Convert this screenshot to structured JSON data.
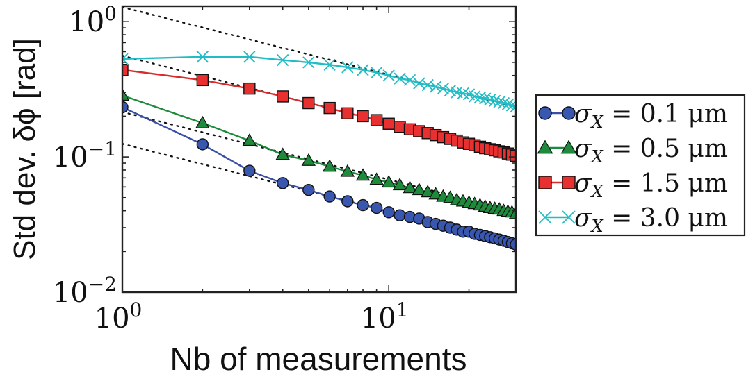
{
  "chart_data": {
    "type": "line",
    "title": "",
    "xlabel": "Nb of measurements",
    "ylabel": "Std dev. δϕ [rad]",
    "xscale": "log",
    "yscale": "log",
    "xlim": [
      1,
      30
    ],
    "ylim": [
      0.01,
      1.3
    ],
    "grid": false,
    "legend_position": "outside-right",
    "x_ticks": [
      {
        "value": 1,
        "base": "10",
        "exp": "0"
      },
      {
        "value": 10,
        "base": "10",
        "exp": "1"
      }
    ],
    "y_ticks": [
      {
        "value": 1,
        "base": "10",
        "exp": "0"
      },
      {
        "value": 0.1,
        "base": "10",
        "exp": "−1"
      },
      {
        "value": 0.01,
        "base": "10",
        "exp": "−2"
      }
    ],
    "series": [
      {
        "name": "σX = 0.1 μm",
        "legend_label": {
          "sigma": "σ",
          "sub": "X",
          "rest": " = 0.1 μm"
        },
        "color": "#3a4fa3",
        "marker": "circle",
        "marker_fill": "#3a57b0",
        "fit_amplitude": 0.125,
        "x": [
          1,
          2,
          3,
          4,
          5,
          6,
          7,
          8,
          9,
          10,
          11,
          12,
          13,
          14,
          15,
          16,
          17,
          18,
          19,
          20,
          21,
          22,
          23,
          24,
          25,
          26,
          27,
          28,
          29,
          30
        ],
        "y": [
          0.233,
          0.124,
          0.079,
          0.064,
          0.057,
          0.051,
          0.047,
          0.044,
          0.042,
          0.039,
          0.037,
          0.036,
          0.035,
          0.033,
          0.032,
          0.031,
          0.03,
          0.029,
          0.028,
          0.028,
          0.027,
          0.0265,
          0.026,
          0.0255,
          0.025,
          0.0245,
          0.024,
          0.0235,
          0.023,
          0.0225
        ]
      },
      {
        "name": "σX = 0.5 μm",
        "legend_label": {
          "sigma": "σ",
          "sub": "X",
          "rest": " = 0.5 μm"
        },
        "color": "#1e8a3c",
        "marker": "triangle",
        "marker_fill": "#1e8a3c",
        "fit_amplitude": 0.215,
        "x": [
          1,
          2,
          3,
          4,
          5,
          6,
          7,
          8,
          9,
          10,
          11,
          12,
          13,
          14,
          15,
          16,
          17,
          18,
          19,
          20,
          21,
          22,
          23,
          24,
          25,
          26,
          27,
          28,
          29,
          30
        ],
        "y": [
          0.285,
          0.178,
          0.132,
          0.104,
          0.094,
          0.085,
          0.078,
          0.073,
          0.068,
          0.065,
          0.062,
          0.059,
          0.057,
          0.055,
          0.053,
          0.051,
          0.05,
          0.048,
          0.047,
          0.046,
          0.045,
          0.044,
          0.043,
          0.042,
          0.0415,
          0.041,
          0.04,
          0.0395,
          0.039,
          0.038
        ]
      },
      {
        "name": "σX = 1.5 μm",
        "legend_label": {
          "sigma": "σ",
          "sub": "X",
          "rest": " = 1.5 μm"
        },
        "color": "#d92b2b",
        "marker": "square",
        "marker_fill": "#e83030",
        "fit_amplitude": 0.56,
        "x": [
          1,
          2,
          3,
          4,
          5,
          6,
          7,
          8,
          9,
          10,
          11,
          12,
          13,
          14,
          15,
          16,
          17,
          18,
          19,
          20,
          21,
          22,
          23,
          24,
          25,
          26,
          27,
          28,
          29,
          30
        ],
        "y": [
          0.44,
          0.37,
          0.32,
          0.28,
          0.25,
          0.23,
          0.21,
          0.2,
          0.187,
          0.176,
          0.167,
          0.16,
          0.155,
          0.15,
          0.145,
          0.14,
          0.136,
          0.132,
          0.128,
          0.125,
          0.122,
          0.119,
          0.116,
          0.114,
          0.112,
          0.11,
          0.108,
          0.106,
          0.104,
          0.102
        ]
      },
      {
        "name": "σX = 3.0 μm",
        "legend_label": {
          "sigma": "σ",
          "sub": "X",
          "rest": " = 3.0 μm"
        },
        "color": "#23bcc4",
        "marker": "x",
        "marker_fill": "none",
        "fit_amplitude": 1.28,
        "x": [
          1,
          2,
          3,
          4,
          5,
          6,
          7,
          8,
          9,
          10,
          11,
          12,
          13,
          14,
          15,
          16,
          17,
          18,
          19,
          20,
          21,
          22,
          23,
          24,
          25,
          26,
          27,
          28,
          29,
          30
        ],
        "y": [
          0.53,
          0.55,
          0.55,
          0.52,
          0.5,
          0.48,
          0.46,
          0.44,
          0.42,
          0.4,
          0.38,
          0.37,
          0.35,
          0.34,
          0.33,
          0.32,
          0.31,
          0.3,
          0.295,
          0.29,
          0.28,
          0.275,
          0.27,
          0.265,
          0.26,
          0.255,
          0.25,
          0.245,
          0.24,
          0.235
        ]
      }
    ]
  }
}
